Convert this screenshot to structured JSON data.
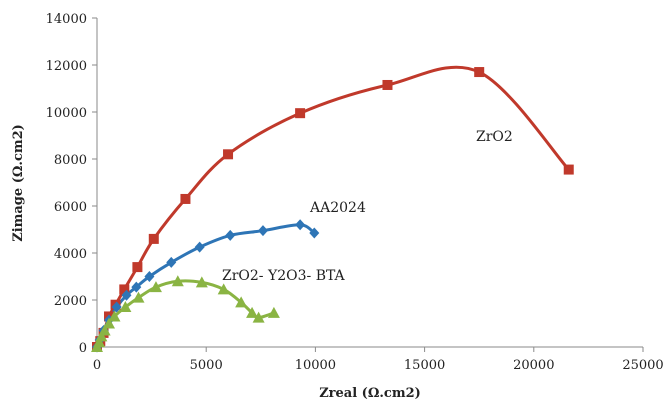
{
  "chart_data": {
    "type": "scatter",
    "xlabel": "Zreal (Ω.cm2)",
    "ylabel": "Zimage (Ω.cm2)",
    "xlim": [
      0,
      25000
    ],
    "ylim": [
      0,
      14000
    ],
    "x_ticks": [
      0,
      5000,
      10000,
      15000,
      20000,
      25000
    ],
    "y_ticks": [
      0,
      2000,
      4000,
      6000,
      8000,
      10000,
      12000,
      14000
    ],
    "grid": false,
    "legend": "none",
    "series": [
      {
        "name": "ZrO2",
        "color": "#c0392b",
        "marker": "square",
        "points": [
          [
            0,
            0
          ],
          [
            150,
            250
          ],
          [
            300,
            600
          ],
          [
            550,
            1300
          ],
          [
            850,
            1800
          ],
          [
            1250,
            2450
          ],
          [
            1850,
            3400
          ],
          [
            2600,
            4600
          ],
          [
            4050,
            6300
          ],
          [
            6000,
            8200
          ],
          [
            9300,
            9950
          ],
          [
            13300,
            11150
          ],
          [
            17500,
            11700
          ],
          [
            21600,
            7550
          ]
        ]
      },
      {
        "name": "AA2024",
        "color": "#2e75b6",
        "marker": "diamond",
        "points": [
          [
            0,
            0
          ],
          [
            120,
            300
          ],
          [
            300,
            700
          ],
          [
            550,
            1150
          ],
          [
            900,
            1700
          ],
          [
            1350,
            2200
          ],
          [
            1800,
            2550
          ],
          [
            2400,
            3000
          ],
          [
            3400,
            3600
          ],
          [
            4700,
            4250
          ],
          [
            6100,
            4750
          ],
          [
            7600,
            4950
          ],
          [
            9300,
            5200
          ],
          [
            9950,
            4850
          ]
        ]
      },
      {
        "name": "ZrO2- Y2O3- BTA",
        "color": "#8ab443",
        "marker": "triangle",
        "points": [
          [
            0,
            0
          ],
          [
            100,
            200
          ],
          [
            200,
            450
          ],
          [
            350,
            700
          ],
          [
            550,
            1000
          ],
          [
            800,
            1300
          ],
          [
            1300,
            1700
          ],
          [
            1900,
            2100
          ],
          [
            2700,
            2550
          ],
          [
            3700,
            2800
          ],
          [
            4800,
            2750
          ],
          [
            5800,
            2450
          ],
          [
            6600,
            1900
          ],
          [
            7100,
            1450
          ],
          [
            7400,
            1250
          ],
          [
            8100,
            1450
          ]
        ]
      }
    ]
  }
}
